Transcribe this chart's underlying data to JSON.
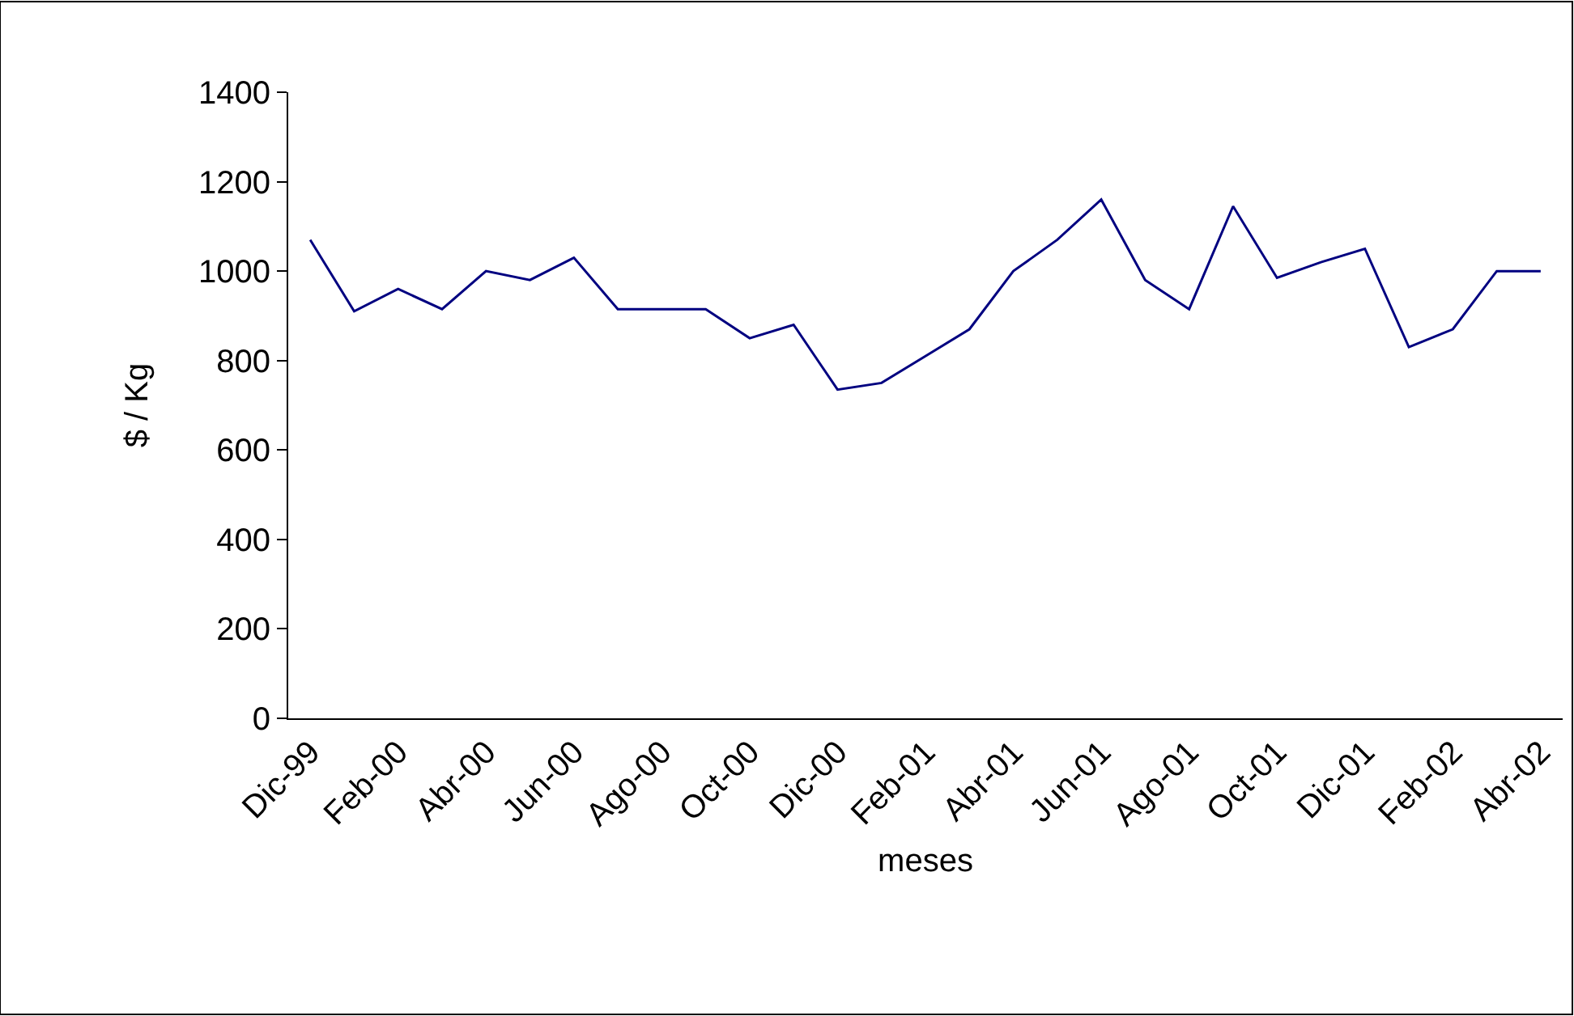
{
  "chart_data": {
    "type": "line",
    "xlabel": "meses",
    "ylabel": "$ / Kg",
    "categories": [
      "Dic-99",
      null,
      "Feb-00",
      null,
      "Abr-00",
      null,
      "Jun-00",
      null,
      "Ago-00",
      null,
      "Oct-00",
      null,
      "Dic-00",
      null,
      "Feb-01",
      null,
      "Abr-01",
      null,
      "Jun-01",
      null,
      "Ago-01",
      null,
      "Oct-01",
      null,
      "Dic-01",
      null,
      "Feb-02",
      null,
      "Abr-02"
    ],
    "series": [
      {
        "color": "#000080",
        "values": [
          1070,
          910,
          960,
          915,
          1000,
          980,
          1030,
          915,
          915,
          915,
          850,
          880,
          735,
          750,
          810,
          870,
          1000,
          1070,
          1160,
          980,
          915,
          1145,
          985,
          1020,
          1050,
          830,
          870,
          1000,
          1000
        ]
      }
    ],
    "ylim": [
      0,
      1400
    ],
    "yticks": [
      0,
      200,
      400,
      600,
      800,
      1000,
      1200,
      1400
    ],
    "grid": false,
    "marker": "none",
    "line_style": "solid"
  }
}
